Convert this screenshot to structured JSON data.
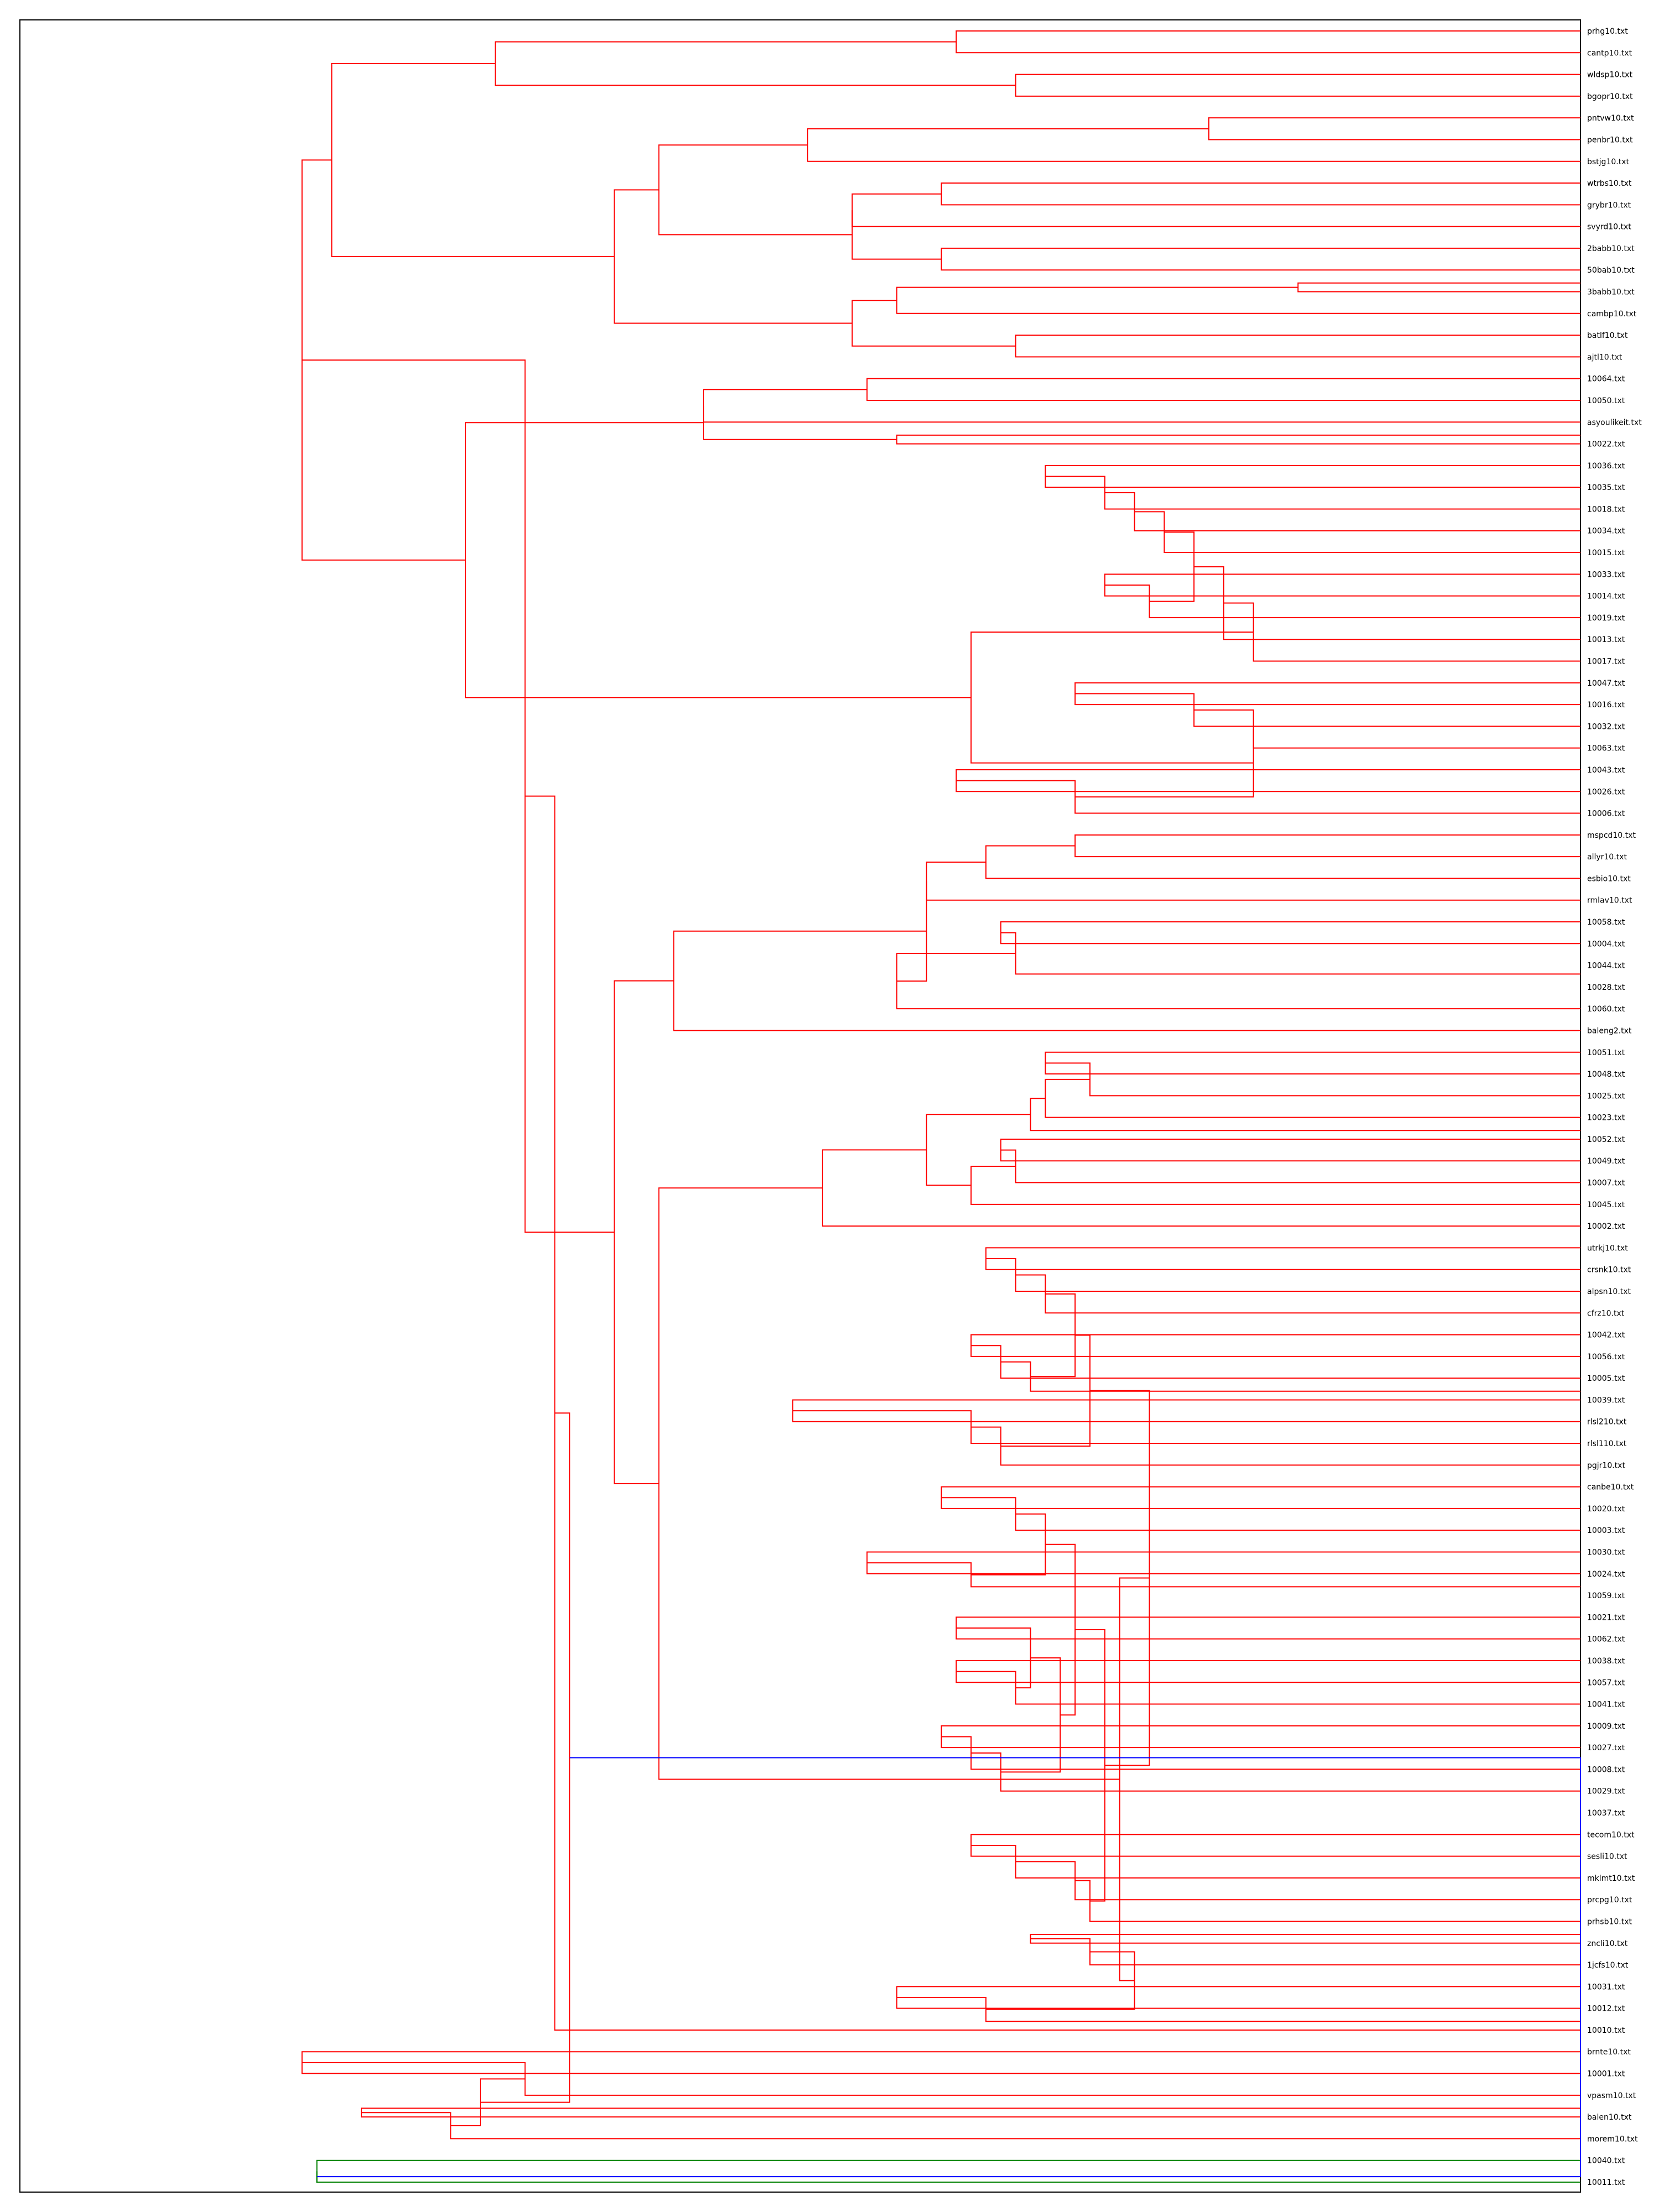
{
  "chart_data": {
    "type": "dendrogram",
    "orientation": "left",
    "grid": false,
    "leaves": [
      "prhg10.txt",
      "cantp10.txt",
      "wldsp10.txt",
      "bgopr10.txt",
      "pntvw10.txt",
      "penbr10.txt",
      "bstjg10.txt",
      "wtrbs10.txt",
      "grybr10.txt",
      "svyrd10.txt",
      "2babb10.txt",
      "50bab10.txt",
      "3babb10.txt",
      "cambp10.txt",
      "batlf10.txt",
      "ajtl10.txt",
      "10064.txt",
      "10050.txt",
      "asyoulikeit.txt",
      "10022.txt",
      "10036.txt",
      "10035.txt",
      "10018.txt",
      "10034.txt",
      "10015.txt",
      "10033.txt",
      "10014.txt",
      "10019.txt",
      "10013.txt",
      "10017.txt",
      "10047.txt",
      "10016.txt",
      "10032.txt",
      "10063.txt",
      "10043.txt",
      "10026.txt",
      "10006.txt",
      "mspcd10.txt",
      "allyr10.txt",
      "esbio10.txt",
      "rmlav10.txt",
      "10058.txt",
      "10004.txt",
      "10044.txt",
      "10028.txt",
      "10060.txt",
      "baleng2.txt",
      "10051.txt",
      "10048.txt",
      "10025.txt",
      "10023.txt",
      "10052.txt",
      "10049.txt",
      "10007.txt",
      "10045.txt",
      "10002.txt",
      "utrkj10.txt",
      "crsnk10.txt",
      "alpsn10.txt",
      "cfrz10.txt",
      "10042.txt",
      "10056.txt",
      "10005.txt",
      "10039.txt",
      "rlsl210.txt",
      "rlsl110.txt",
      "pgjr10.txt",
      "canbe10.txt",
      "10020.txt",
      "10003.txt",
      "10030.txt",
      "10024.txt",
      "10059.txt",
      "10021.txt",
      "10062.txt",
      "10038.txt",
      "10057.txt",
      "10041.txt",
      "10009.txt",
      "10027.txt",
      "10008.txt",
      "10029.txt",
      "10037.txt",
      "tecom10.txt",
      "sesli10.txt",
      "mklmt10.txt",
      "prcpg10.txt",
      "prhsb10.txt",
      "zncli10.txt",
      "1jcfs10.txt",
      "10031.txt",
      "10012.txt",
      "10010.txt",
      "brnte10.txt",
      "10001.txt",
      "vpasm10.txt",
      "balen10.txt",
      "morem10.txt",
      "10040.txt",
      "10011.txt"
    ],
    "colors": {
      "main": "#ff0000",
      "root": "#0000ff",
      "small_cluster": "#008000",
      "frame": "#000000"
    },
    "tree": [
      "A",
      [
        "A",
        [
          "A",
          [
            "A",
            [
              "A",
              [
                "A",
                [
                  "A",
                  [
                    0.42,
                    0,
                    1
                  ],
                  [
                    0.38,
                    2,
                    3
                  ],
                  0.73
                ],
                [
                  "A",
                  [
                    "A",
                    [
                      "A",
                      [
                        0.25,
                        4,
                        5
                      ],
                      6,
                      0.52
                    ],
                    [
                      "A",
                      [
                        "A",
                        [
                          0.43,
                          7,
                          8
                        ],
                        9,
                        0.49
                      ],
                      [
                        0.43,
                        10,
                        11
                      ],
                      0.49
                    ],
                    0.62
                  ],
                  [
                    "A",
                    [
                      "A",
                      [
                        0.19,
                        11.6,
                        12
                      ],
                      13,
                      0.46
                    ],
                    [
                      0.38,
                      14,
                      15
                    ],
                    0.49
                  ],
                  0.65
                ],
                0.84
              ],
              [
                "A",
                [
                  "A",
                  [
                    "A",
                    [
                      0.48,
                      16,
                      17
                    ],
                    18,
                    0.59
                  ],
                  [
                    0.46,
                    18.6,
                    19
                  ],
                  0.59
                ],
                [
                  "A",
                  [
                    "A",
                    [
                      "A",
                      [
                        "A",
                        [
                          "A",
                          [
                            "A",
                            [
                              "A",
                              [
                                0.36,
                                20,
                                21
                              ],
                              22,
                              0.32
                            ],
                            23,
                            0.3
                          ],
                          24,
                          0.28
                        ],
                        [
                          "A",
                          [
                            0.32,
                            25,
                            26
                          ],
                          27,
                          0.29
                        ],
                        0.26
                      ],
                      28,
                      0.24
                    ],
                    29,
                    0.22
                  ],
                  [
                    "A",
                    [
                      "A",
                      [
                        "A",
                        [
                          0.34,
                          30,
                          31
                        ],
                        32,
                        0.26
                      ],
                      33,
                      0.22
                    ],
                    [
                      "A",
                      [
                        0.42,
                        34,
                        35
                      ],
                      36,
                      0.34
                    ],
                    0.22
                  ],
                  0.41
                ],
                0.75
              ],
              0.86
            ],
            [
              "A",
              [
                "A",
                [
                  "A",
                  [
                    "A",
                    [
                      "A",
                      [
                        0.34,
                        37,
                        38
                      ],
                      39,
                      0.4
                    ],
                    40,
                    0.44
                  ],
                  [
                    "A",
                    [
                      "A",
                      [
                        0.39,
                        41,
                        42
                      ],
                      43.4,
                      0.38
                    ],
                    45,
                    0.46
                  ],
                  0.44
                ],
                46,
                0.61
              ],
              [
                "A",
                [
                  "A",
                  [
                    "A",
                    [
                      "A",
                      [
                        "A",
                        [
                          "A",
                          [
                            0.36,
                            47,
                            48
                          ],
                          49,
                          0.33
                        ],
                        50,
                        0.36
                      ],
                      50.6,
                      0.37
                    ],
                    [
                      "A",
                      [
                        "A",
                        [
                          0.39,
                          51,
                          52
                        ],
                        53,
                        0.38
                      ],
                      54,
                      0.41
                    ],
                    0.44
                  ],
                  55,
                  0.51
                ],
                [
                  "A",
                  [
                    "A",
                    [
                      "A",
                      [
                        "A",
                        [
                          "A",
                          [
                            "A",
                            [
                              0.4,
                              56,
                              57
                            ],
                            58,
                            0.38
                          ],
                          59,
                          0.36
                        ],
                        [
                          "A",
                          [
                            "A",
                            [
                              0.41,
                              60,
                              61
                            ],
                            62,
                            0.39
                          ],
                          62.6,
                          0.37
                        ],
                        0.34
                      ],
                      [
                        "A",
                        [
                          "A",
                          [
                            0.53,
                            63,
                            64
                          ],
                          65,
                          0.41
                        ],
                        66,
                        0.39
                      ],
                      0.33
                    ],
                    [
                      "A",
                      [
                        "A",
                        [
                          "A",
                          [
                            "A",
                            [
                              0.43,
                              67,
                              68
                            ],
                            69,
                            0.38
                          ],
                          [
                            "A",
                            [
                              0.48,
                              70,
                              71
                            ],
                            71.6,
                            0.41
                          ],
                          0.36
                        ],
                        [
                          "A",
                          [
                            "A",
                            [
                              0.42,
                              73,
                              74
                            ],
                            [
                              "A",
                              [
                                0.42,
                                75,
                                76
                              ],
                              77,
                              0.38
                            ],
                            0.37
                          ],
                          [
                            "A",
                            [
                              "A",
                              [
                                0.43,
                                78,
                                79
                              ],
                              80,
                              0.41
                            ],
                            81,
                            0.39
                          ],
                          0.35
                        ],
                        0.34
                      ],
                      [
                        "A",
                        [
                          "A",
                          [
                            "A",
                            [
                              0.41,
                              83,
                              84
                            ],
                            85,
                            0.38
                          ],
                          86,
                          0.34
                        ],
                        87,
                        0.33
                      ],
                      0.32
                    ],
                    0.29
                  ],
                  [
                    "A",
                    [
                      "A",
                      [
                        0.37,
                        87.6,
                        88
                      ],
                      89,
                      0.33
                    ],
                    [
                      "A",
                      [
                        0.46,
                        90,
                        91
                      ],
                      91.6,
                      0.4
                    ],
                    0.3
                  ],
                  0.31
                ],
                0.62
              ],
              0.65
            ],
            0.71
          ],
          92,
          0.69
        ],
        [
          "A",
          [
            "A",
            [
              0.86,
              93,
              94
            ],
            95,
            0.71
          ],
          [
            "A",
            [
              0.82,
              95.6,
              96
            ],
            97,
            0.76
          ],
          0.74
        ],
        0.68
      ],
      [
        "A",
        [
          0.85,
          98,
          99
        ],
        99.5,
        0.85
      ],
      0.0
    ]
  }
}
